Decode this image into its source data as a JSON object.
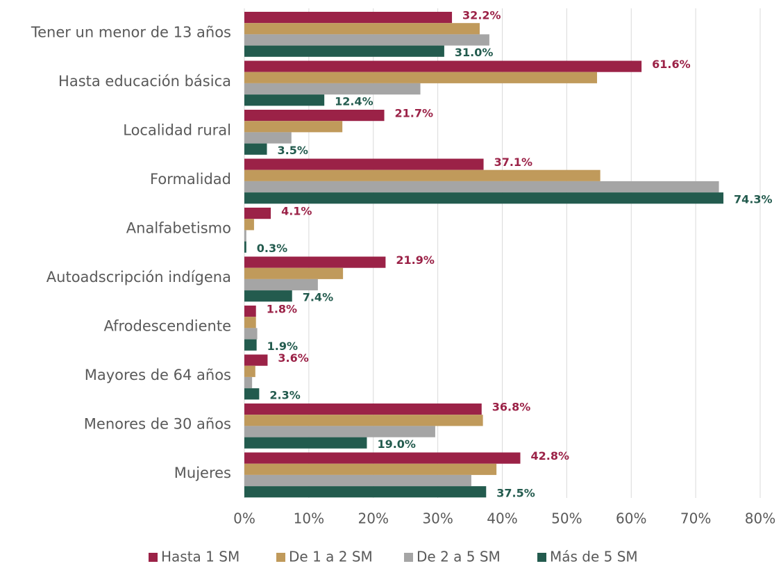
{
  "chart_data": {
    "type": "hbar",
    "categories": [
      "Tener un menor de 13 años",
      "Hasta educación básica",
      "Localidad rural",
      "Formalidad",
      "Analfabetismo",
      "Autoadscripción indígena",
      "Afrodescendiente",
      "Mayores de 64 años",
      "Menores de 30 años",
      "Mujeres"
    ],
    "series": [
      {
        "name": "Hasta 1 SM",
        "color": "#9b2247",
        "values": [
          32.2,
          61.6,
          21.7,
          37.1,
          4.1,
          21.9,
          1.8,
          3.6,
          36.8,
          42.8
        ],
        "value_labels": [
          "32.2%",
          "61.6%",
          "21.7%",
          "37.1%",
          "4.1%",
          "21.9%",
          "1.8%",
          "3.6%",
          "36.8%",
          "42.8%"
        ]
      },
      {
        "name": "De 1 a 2 SM",
        "color": "#c09a5b",
        "values": [
          36.5,
          54.7,
          15.2,
          55.2,
          1.5,
          15.3,
          1.8,
          1.7,
          37.0,
          39.1
        ]
      },
      {
        "name": "De 2 a 5 SM",
        "color": "#a5a5a5",
        "values": [
          38.0,
          27.3,
          7.3,
          73.6,
          0.3,
          11.4,
          2.0,
          1.2,
          29.6,
          35.2
        ]
      },
      {
        "name": "Más de 5 SM",
        "color": "#235b4e",
        "values": [
          31.0,
          12.4,
          3.5,
          74.3,
          0.3,
          7.4,
          1.9,
          2.3,
          19.0,
          37.5
        ],
        "value_labels": [
          "31.0%",
          "12.4%",
          "3.5%",
          "74.3%",
          "0.3%",
          "7.4%",
          "1.9%",
          "2.3%",
          "19.0%",
          "37.5%"
        ]
      }
    ],
    "xlim": [
      0,
      80
    ],
    "xticks": [
      {
        "value": 0,
        "label": "0%"
      },
      {
        "value": 10,
        "label": "10%"
      },
      {
        "value": 20,
        "label": "20%"
      },
      {
        "value": 30,
        "label": "30%"
      },
      {
        "value": 40,
        "label": "40%"
      },
      {
        "value": 50,
        "label": "50%"
      },
      {
        "value": 60,
        "label": "60%"
      },
      {
        "value": 70,
        "label": "70%"
      },
      {
        "value": 80,
        "label": "80%"
      }
    ],
    "grid": true,
    "legend": "bottom"
  }
}
